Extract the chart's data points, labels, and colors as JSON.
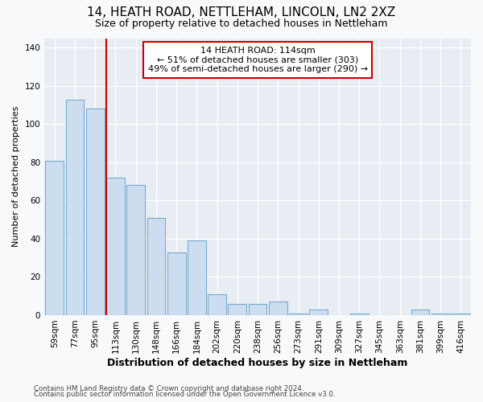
{
  "title": "14, HEATH ROAD, NETTLEHAM, LINCOLN, LN2 2XZ",
  "subtitle": "Size of property relative to detached houses in Nettleham",
  "xlabel": "Distribution of detached houses by size in Nettleham",
  "ylabel": "Number of detached properties",
  "categories": [
    "59sqm",
    "77sqm",
    "95sqm",
    "113sqm",
    "130sqm",
    "148sqm",
    "166sqm",
    "184sqm",
    "202sqm",
    "220sqm",
    "238sqm",
    "256sqm",
    "273sqm",
    "291sqm",
    "309sqm",
    "327sqm",
    "345sqm",
    "363sqm",
    "381sqm",
    "399sqm",
    "416sqm"
  ],
  "values": [
    81,
    113,
    108,
    72,
    68,
    51,
    33,
    39,
    11,
    6,
    6,
    7,
    1,
    3,
    0,
    1,
    0,
    0,
    3,
    1,
    1
  ],
  "bar_color": "#ccddf0",
  "bar_edge_color": "#7aabcc",
  "vline_index": 3,
  "vline_color": "#cc0000",
  "annotation_line1": "14 HEATH ROAD: 114sqm",
  "annotation_line2": "← 51% of detached houses are smaller (303)",
  "annotation_line3": "49% of semi-detached houses are larger (290) →",
  "annotation_box_facecolor": "#ffffff",
  "annotation_box_edgecolor": "#cc0000",
  "ylim": [
    0,
    145
  ],
  "yticks": [
    0,
    20,
    40,
    60,
    80,
    100,
    120,
    140
  ],
  "fig_facecolor": "#f8f9fb",
  "ax_facecolor": "#e8edf4",
  "grid_color": "#ffffff",
  "title_fontsize": 11,
  "subtitle_fontsize": 9,
  "ylabel_fontsize": 8,
  "xlabel_fontsize": 9,
  "tick_fontsize": 7.5,
  "footnote1": "Contains HM Land Registry data © Crown copyright and database right 2024.",
  "footnote2": "Contains public sector information licensed under the Open Government Licence v3.0."
}
